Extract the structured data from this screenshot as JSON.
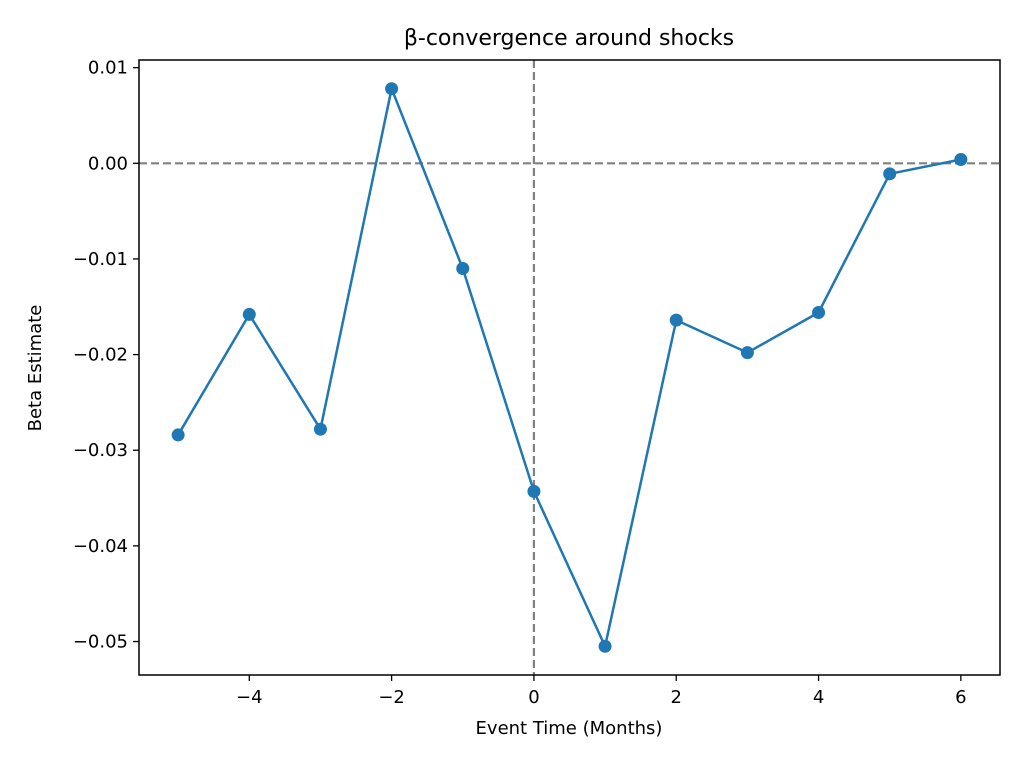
{
  "chart_data": {
    "type": "line",
    "title": "β-convergence around shocks",
    "xlabel": "Event Time (Months)",
    "ylabel": "Beta Estimate",
    "xlim": [
      -5.55,
      6.55
    ],
    "ylim": [
      -0.0535,
      0.0108
    ],
    "xticks": [
      -4,
      -2,
      0,
      2,
      4,
      6
    ],
    "xtick_labels": [
      "−4",
      "−2",
      "0",
      "2",
      "4",
      "6"
    ],
    "yticks": [
      0.01,
      0.0,
      -0.01,
      -0.02,
      -0.03,
      -0.04,
      -0.05
    ],
    "ytick_labels": [
      "0.01",
      "0.00",
      "−0.01",
      "−0.02",
      "−0.03",
      "−0.04",
      "−0.05"
    ],
    "grid": false,
    "reference_lines": [
      {
        "orientation": "horizontal",
        "value": 0.0,
        "style": "dashed",
        "color": "#808080"
      },
      {
        "orientation": "vertical",
        "value": 0,
        "style": "dashed",
        "color": "#808080"
      }
    ],
    "series": [
      {
        "color": "#1f77b4",
        "marker": "circle",
        "x": [
          -5,
          -4,
          -3,
          -2,
          -1,
          0,
          1,
          2,
          3,
          4,
          5,
          6
        ],
        "y": [
          -0.0284,
          -0.0158,
          -0.0278,
          0.0078,
          -0.011,
          -0.0343,
          -0.0505,
          -0.0164,
          -0.0198,
          -0.0156,
          -0.0011,
          0.0004
        ]
      }
    ]
  }
}
